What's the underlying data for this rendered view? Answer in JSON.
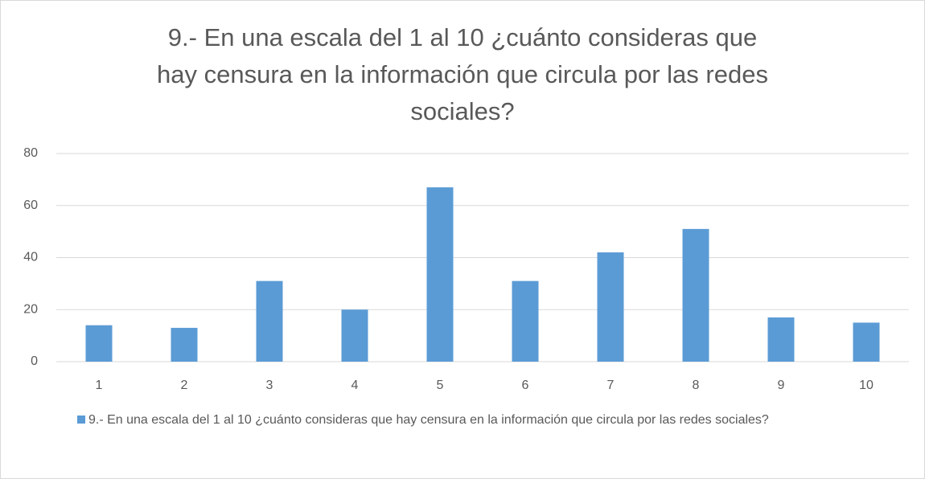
{
  "chart_data": {
    "type": "bar",
    "title": "9.- En una escala del 1 al 10 ¿cuánto consideras que hay censura en la información que circula por las redes sociales?",
    "categories": [
      "1",
      "2",
      "3",
      "4",
      "5",
      "6",
      "7",
      "8",
      "9",
      "10"
    ],
    "series": [
      {
        "name": "9.- En una escala del 1 al 10 ¿cuánto consideras que hay censura en la información que circula por las redes sociales?",
        "color": "#5b9bd5",
        "values": [
          14,
          13,
          31,
          20,
          67,
          31,
          42,
          51,
          17,
          15
        ]
      }
    ],
    "ylim": [
      0,
      80
    ],
    "yticks": [
      0,
      20,
      40,
      60,
      80
    ],
    "grid": true,
    "legend": "bottom"
  }
}
